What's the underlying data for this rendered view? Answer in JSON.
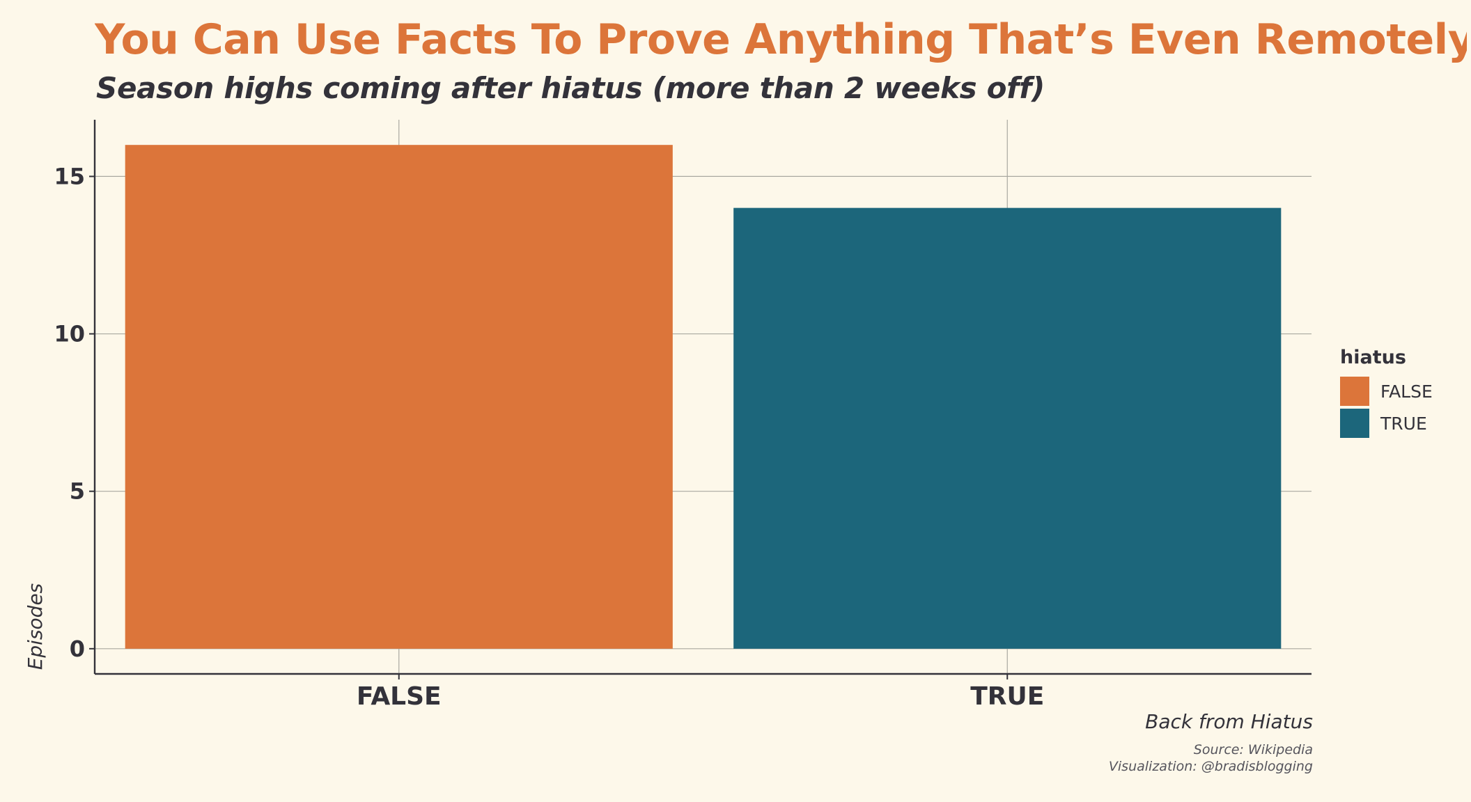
{
  "title": "You Can Use Facts To Prove Anything That’s Even Remotely True",
  "subtitle": "Season highs coming after hiatus (more than 2 weeks off)",
  "caption": {
    "main": "Back from Hiatus",
    "source": "Source: Wikipedia",
    "credit": "Visualization: @bradisblogging"
  },
  "legend": {
    "title": "hiatus",
    "items": [
      {
        "label": "FALSE",
        "color": "#dc753a"
      },
      {
        "label": "TRUE",
        "color": "#1c667b"
      }
    ]
  },
  "chart_data": {
    "type": "bar",
    "categories": [
      "FALSE",
      "TRUE"
    ],
    "values": [
      16,
      14
    ],
    "colors": [
      "#dc753a",
      "#1c667b"
    ],
    "xlabel": "",
    "ylabel": "Episodes",
    "ylim": [
      -0.8,
      16.8
    ],
    "yticks": [
      0,
      5,
      10,
      15
    ],
    "grid": true,
    "legend_position": "right",
    "background": "#fdf8ea"
  }
}
